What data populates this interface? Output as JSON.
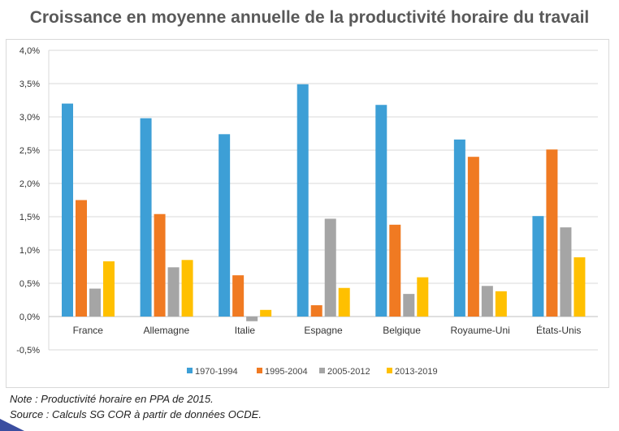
{
  "chart_data": {
    "type": "bar",
    "title": "Croissance en moyenne annuelle de la productivité horaire du travail",
    "xlabel": "",
    "ylabel": "",
    "ylim": [
      -0.5,
      4.0
    ],
    "yticks": [
      "-0,5%",
      "0,0%",
      "0,5%",
      "1,0%",
      "1,5%",
      "2,0%",
      "2,5%",
      "3,0%",
      "3,5%",
      "4,0%"
    ],
    "grid": true,
    "legend": "bottom",
    "categories": [
      "France",
      "Allemagne",
      "Italie",
      "Espagne",
      "Belgique",
      "Royaume-Uni",
      "États-Unis"
    ],
    "series": [
      {
        "name": "1970-1994",
        "color": "#3d9fd6",
        "values": [
          3.2,
          2.98,
          2.74,
          3.49,
          3.18,
          2.66,
          1.51
        ]
      },
      {
        "name": "1995-2004",
        "color": "#f07a22",
        "values": [
          1.75,
          1.54,
          0.62,
          0.17,
          1.38,
          2.4,
          2.51
        ]
      },
      {
        "name": "2005-2012",
        "color": "#a5a5a5",
        "values": [
          0.42,
          0.74,
          -0.07,
          1.47,
          0.34,
          0.46,
          1.34
        ]
      },
      {
        "name": "2013-2019",
        "color": "#ffc000",
        "values": [
          0.83,
          0.85,
          0.1,
          0.43,
          0.59,
          0.38,
          0.89
        ]
      }
    ]
  },
  "notes": {
    "note": "Note : Productivité horaire en PPA de 2015.",
    "source": "Source : Calculs SG COR à partir de données OCDE."
  }
}
